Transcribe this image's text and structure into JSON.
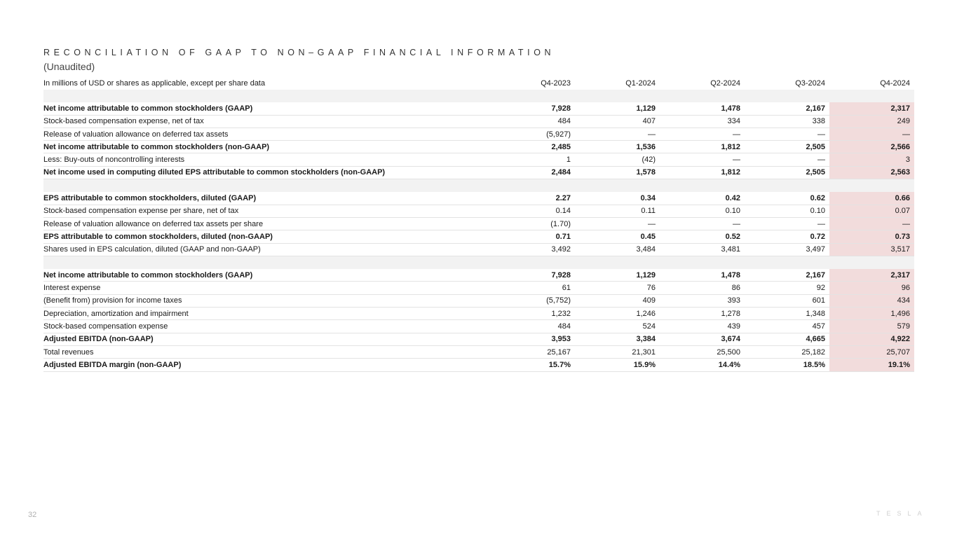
{
  "header": {
    "title": "RECONCILIATION OF GAAP TO NON–GAAP FINANCIAL INFORMATION",
    "subtitle": "(Unaudited)"
  },
  "table": {
    "unit_note": "In millions of USD or shares as applicable, except per share data",
    "columns": [
      "Q4-2023",
      "Q1-2024",
      "Q2-2024",
      "Q3-2024",
      "Q4-2024"
    ],
    "highlight_color": "#f2dcdc",
    "sections": [
      {
        "rows": [
          {
            "label": "Net income attributable to common stockholders (GAAP)",
            "bold": true,
            "values": [
              "7,928",
              "1,129",
              "1,478",
              "2,167",
              "2,317"
            ]
          },
          {
            "label": "Stock-based compensation expense, net of tax",
            "bold": false,
            "values": [
              "484",
              "407",
              "334",
              "338",
              "249"
            ]
          },
          {
            "label": "Release of valuation allowance on deferred tax assets",
            "bold": false,
            "values": [
              "(5,927)",
              "—",
              "—",
              "—",
              "—"
            ]
          },
          {
            "label": "Net income attributable to common stockholders (non-GAAP)",
            "bold": true,
            "values": [
              "2,485",
              "1,536",
              "1,812",
              "2,505",
              "2,566"
            ]
          },
          {
            "label": "Less: Buy-outs of noncontrolling interests",
            "bold": false,
            "values": [
              "1",
              "(42)",
              "—",
              "—",
              "3"
            ]
          },
          {
            "label": "Net income used in computing diluted EPS attributable to common stockholders (non-GAAP)",
            "bold": true,
            "values": [
              "2,484",
              "1,578",
              "1,812",
              "2,505",
              "2,563"
            ]
          }
        ]
      },
      {
        "rows": [
          {
            "label": "EPS attributable to common stockholders, diluted (GAAP)",
            "bold": true,
            "values": [
              "2.27",
              "0.34",
              "0.42",
              "0.62",
              "0.66"
            ]
          },
          {
            "label": "Stock-based compensation expense per share, net of tax",
            "bold": false,
            "values": [
              "0.14",
              "0.11",
              "0.10",
              "0.10",
              "0.07"
            ]
          },
          {
            "label": "Release of valuation allowance on deferred tax assets per share",
            "bold": false,
            "values": [
              "(1.70)",
              "—",
              "—",
              "—",
              "—"
            ]
          },
          {
            "label": "EPS attributable to common stockholders, diluted (non-GAAP)",
            "bold": true,
            "values": [
              "0.71",
              "0.45",
              "0.52",
              "0.72",
              "0.73"
            ]
          },
          {
            "label": "Shares used in EPS calculation, diluted (GAAP and non-GAAP)",
            "bold": false,
            "values": [
              "3,492",
              "3,484",
              "3,481",
              "3,497",
              "3,517"
            ]
          }
        ]
      },
      {
        "rows": [
          {
            "label": "Net income attributable to common stockholders (GAAP)",
            "bold": true,
            "values": [
              "7,928",
              "1,129",
              "1,478",
              "2,167",
              "2,317"
            ]
          },
          {
            "label": "Interest expense",
            "bold": false,
            "values": [
              "61",
              "76",
              "86",
              "92",
              "96"
            ]
          },
          {
            "label": "(Benefit from) provision for income taxes",
            "bold": false,
            "values": [
              "(5,752)",
              "409",
              "393",
              "601",
              "434"
            ]
          },
          {
            "label": "Depreciation, amortization and impairment",
            "bold": false,
            "values": [
              "1,232",
              "1,246",
              "1,278",
              "1,348",
              "1,496"
            ]
          },
          {
            "label": "Stock-based compensation expense",
            "bold": false,
            "values": [
              "484",
              "524",
              "439",
              "457",
              "579"
            ]
          },
          {
            "label": "Adjusted EBITDA (non-GAAP)",
            "bold": true,
            "values": [
              "3,953",
              "3,384",
              "3,674",
              "4,665",
              "4,922"
            ]
          },
          {
            "label": "Total revenues",
            "bold": false,
            "values": [
              "25,167",
              "21,301",
              "25,500",
              "25,182",
              "25,707"
            ]
          },
          {
            "label": "Adjusted EBITDA margin (non-GAAP)",
            "bold": true,
            "values": [
              "15.7%",
              "15.9%",
              "14.4%",
              "18.5%",
              "19.1%"
            ]
          }
        ]
      }
    ]
  },
  "footer": {
    "page_number": "32",
    "logo": "TESLA"
  }
}
